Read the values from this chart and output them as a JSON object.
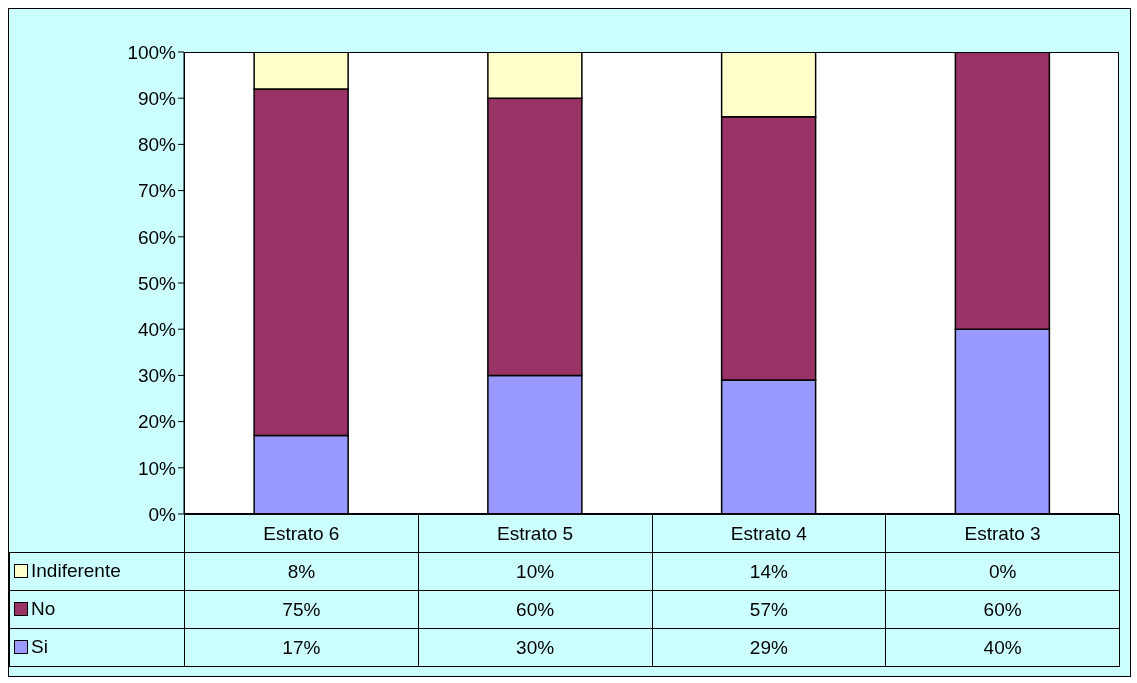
{
  "chart_data": {
    "type": "bar",
    "stacked": true,
    "categories": [
      "Estrato 6",
      "Estrato 5",
      "Estrato 4",
      "Estrato 3"
    ],
    "series": [
      {
        "name": "Si",
        "color": "#9999ff",
        "values": [
          17,
          30,
          29,
          40
        ],
        "value_labels": [
          "17%",
          "30%",
          "29%",
          "40%"
        ]
      },
      {
        "name": "No",
        "color": "#993366",
        "values": [
          75,
          60,
          57,
          60
        ],
        "value_labels": [
          "75%",
          "60%",
          "57%",
          "60%"
        ]
      },
      {
        "name": "Indiferente",
        "color": "#ffffcc",
        "values": [
          8,
          10,
          14,
          0
        ],
        "value_labels": [
          "8%",
          "10%",
          "14%",
          "0%"
        ]
      }
    ],
    "ylim": [
      0,
      100
    ],
    "yticks": [
      {
        "value": 0,
        "label": "0%"
      },
      {
        "value": 10,
        "label": "10%"
      },
      {
        "value": 20,
        "label": "20%"
      },
      {
        "value": 30,
        "label": "30%"
      },
      {
        "value": 40,
        "label": "40%"
      },
      {
        "value": 50,
        "label": "50%"
      },
      {
        "value": 60,
        "label": "60%"
      },
      {
        "value": 70,
        "label": "70%"
      },
      {
        "value": 80,
        "label": "80%"
      },
      {
        "value": 90,
        "label": "90%"
      },
      {
        "value": 100,
        "label": "100%"
      }
    ],
    "legend": "bottom",
    "grid": false
  }
}
